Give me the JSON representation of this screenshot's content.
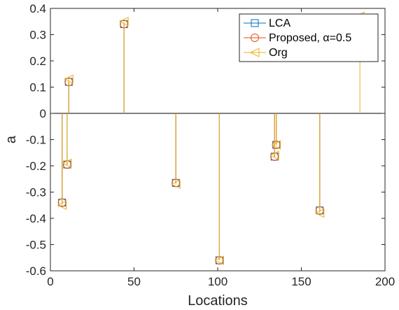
{
  "chart_data": {
    "type": "stem",
    "xlabel": "Locations",
    "ylabel": "a",
    "xlim": [
      0,
      200
    ],
    "ylim": [
      -0.6,
      0.4
    ],
    "xticks": [
      "0",
      "50",
      "100",
      "150",
      "200"
    ],
    "yticks": [
      "-0.6",
      "-0.5",
      "-0.4",
      "-0.3",
      "-0.2",
      "-0.1",
      "0",
      "0.1",
      "0.2",
      "0.3",
      "0.4"
    ],
    "grid": false,
    "legend_position": "top-right",
    "series": [
      {
        "name": "LCA",
        "color": "#0072BD",
        "marker": "square",
        "x": [
          7,
          10,
          11,
          44,
          75,
          101,
          134,
          135,
          161
        ],
        "y": [
          -0.34,
          -0.195,
          0.12,
          0.34,
          -0.265,
          -0.56,
          -0.165,
          -0.12,
          -0.37
        ]
      },
      {
        "name": "Proposed, α=0.5",
        "color": "#D95319",
        "marker": "circle",
        "x": [
          7,
          10,
          11,
          44,
          75,
          101,
          134,
          135,
          161
        ],
        "y": [
          -0.34,
          -0.195,
          0.12,
          0.34,
          -0.265,
          -0.56,
          -0.165,
          -0.12,
          -0.37
        ]
      },
      {
        "name": "Org",
        "color": "#EDB120",
        "marker": "triangle-left",
        "x": [
          7,
          10,
          11,
          44,
          75,
          101,
          134,
          135,
          161,
          185
        ],
        "y": [
          -0.35,
          -0.19,
          0.13,
          0.35,
          -0.27,
          -0.56,
          -0.16,
          -0.12,
          -0.38,
          0.37
        ]
      }
    ]
  }
}
